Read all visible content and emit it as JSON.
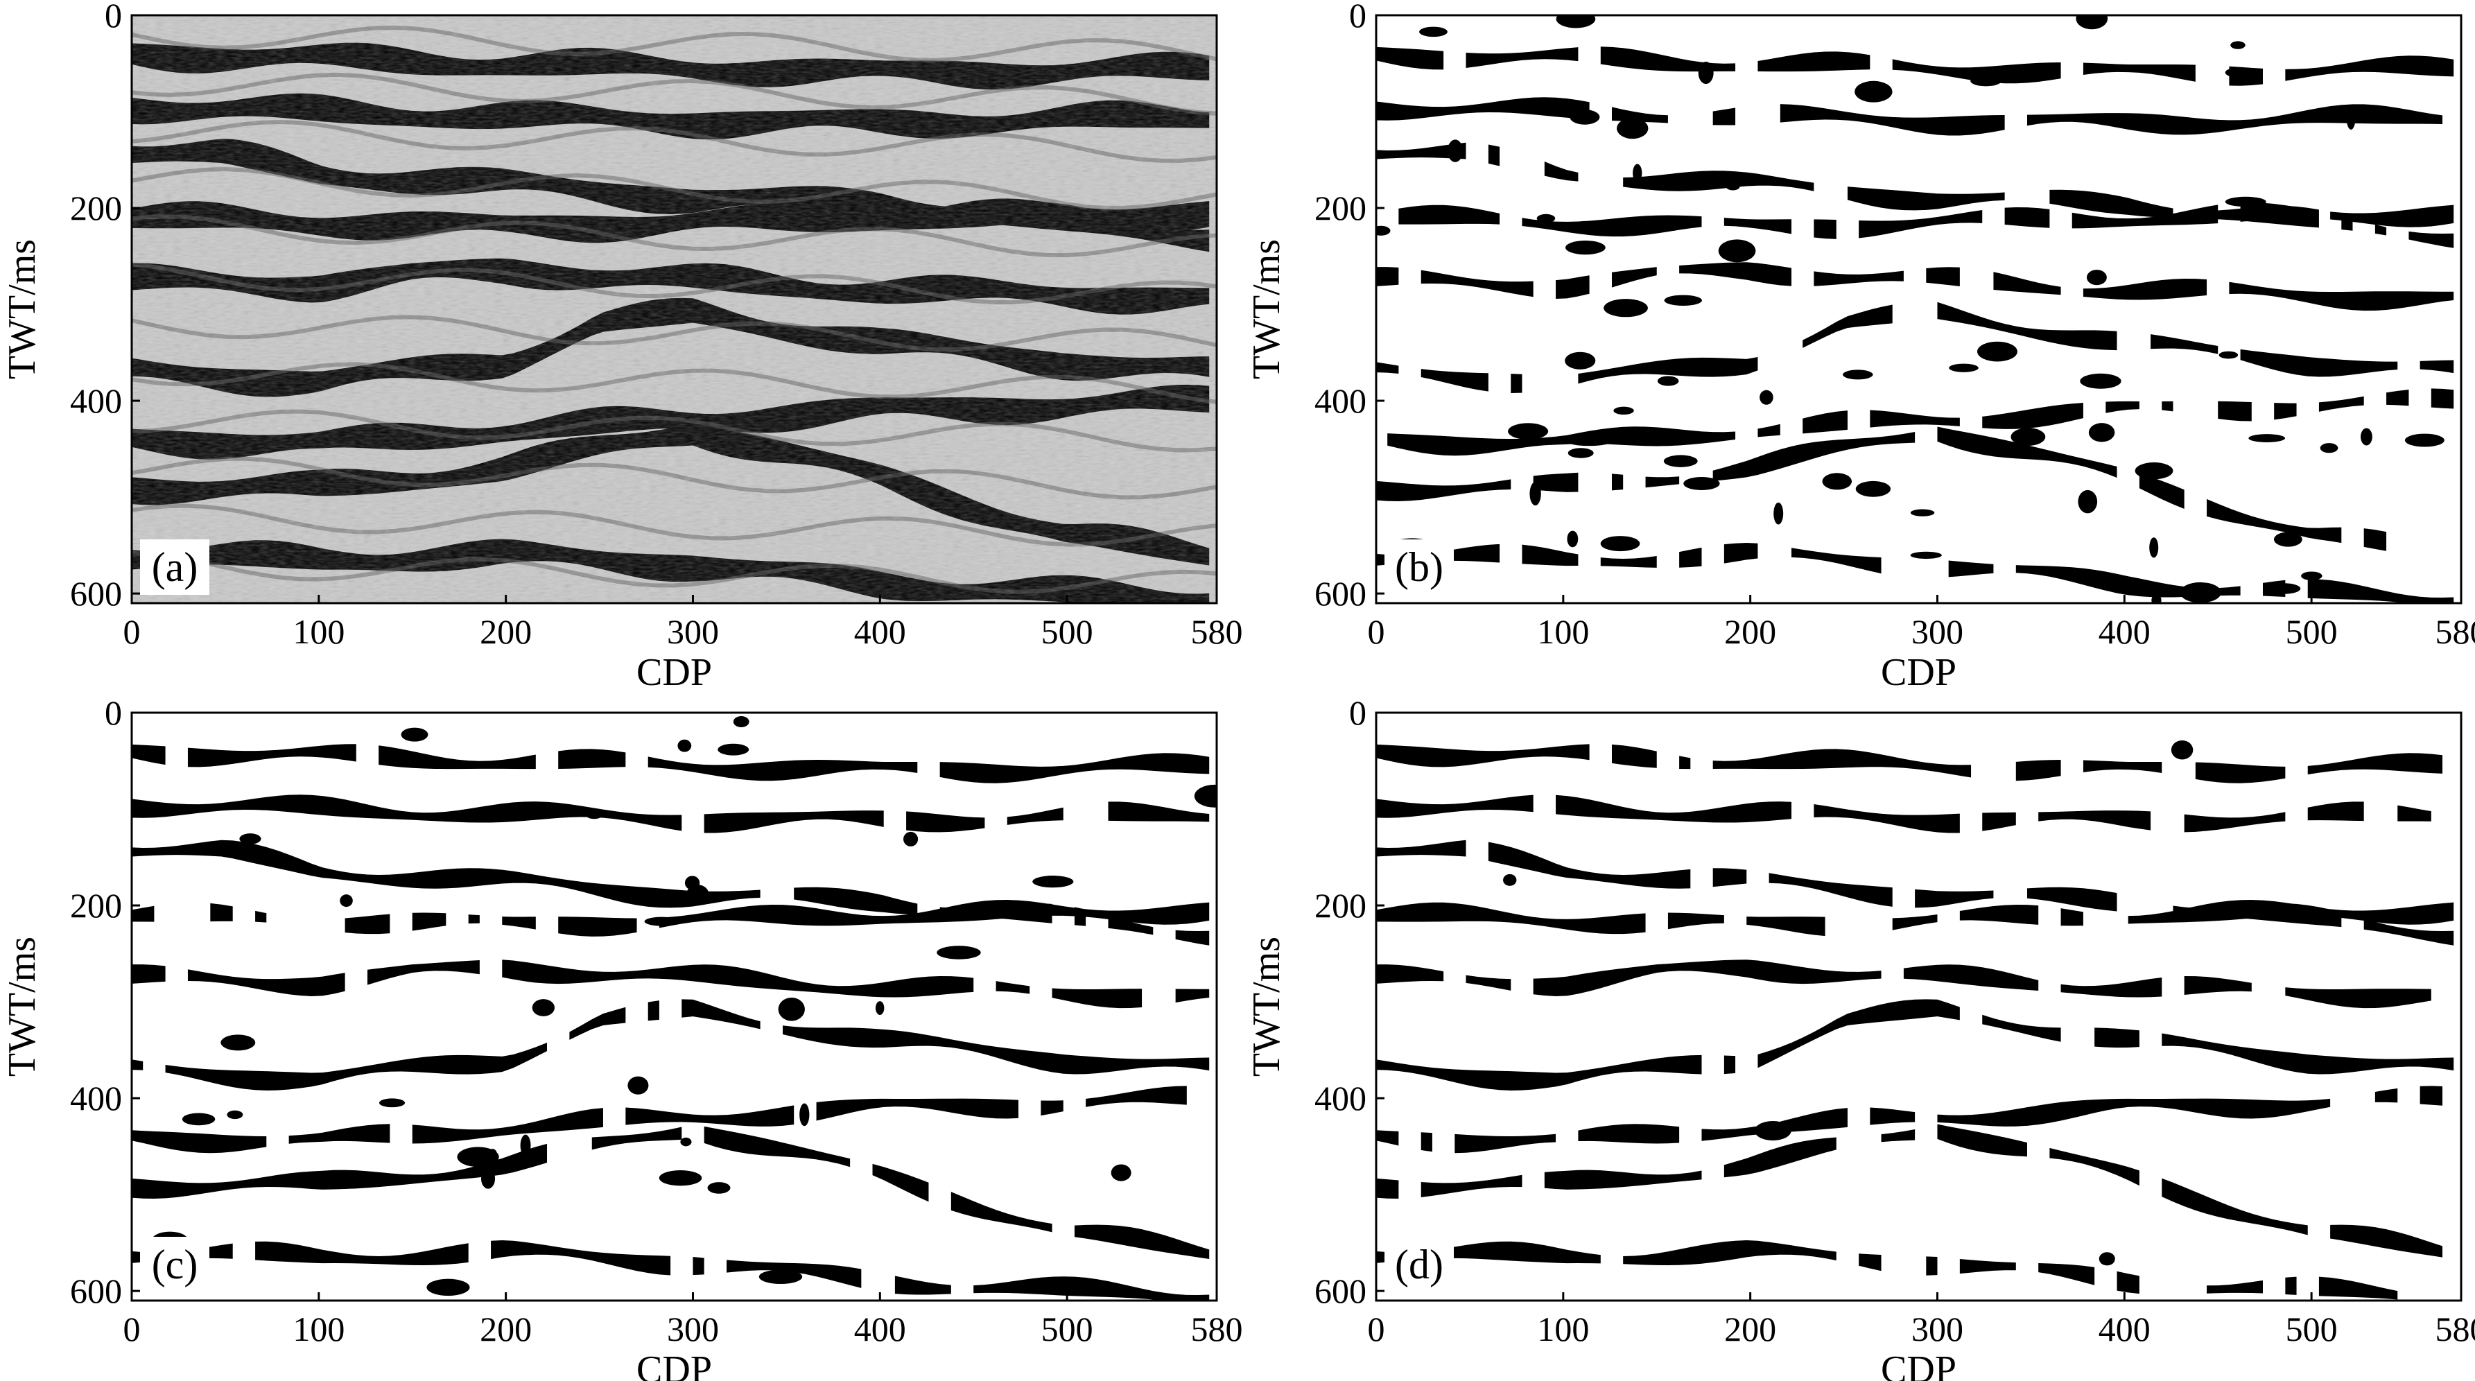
{
  "chart_data": [
    {
      "type": "heatmap",
      "panel_label": "(a)",
      "style": "grayscale seismic amplitude section",
      "xlabel": "CDP",
      "ylabel": "TWT/ms",
      "x_ticks": [
        0,
        100,
        200,
        300,
        400,
        500,
        580
      ],
      "y_ticks": [
        0,
        200,
        400,
        600
      ],
      "xlim": [
        0,
        580
      ],
      "ylim": [
        0,
        610
      ],
      "y_inverted": true
    },
    {
      "type": "heatmap",
      "panel_label": "(b)",
      "style": "binary black/white horizon map",
      "xlabel": "CDP",
      "ylabel": "TWT/ms",
      "x_ticks": [
        0,
        100,
        200,
        300,
        400,
        500,
        580
      ],
      "y_ticks": [
        0,
        200,
        400,
        600
      ],
      "xlim": [
        0,
        580
      ],
      "ylim": [
        0,
        610
      ],
      "y_inverted": true
    },
    {
      "type": "heatmap",
      "panel_label": "(c)",
      "style": "binary black/white horizon map",
      "xlabel": "CDP",
      "ylabel": "TWT/ms",
      "x_ticks": [
        0,
        100,
        200,
        300,
        400,
        500,
        580
      ],
      "y_ticks": [
        0,
        200,
        400,
        600
      ],
      "xlim": [
        0,
        580
      ],
      "ylim": [
        0,
        610
      ],
      "y_inverted": true
    },
    {
      "type": "heatmap",
      "panel_label": "(d)",
      "style": "binary black/white horizon map",
      "xlabel": "CDP",
      "ylabel": "TWT/ms",
      "x_ticks": [
        0,
        100,
        200,
        300,
        400,
        500,
        580
      ],
      "y_ticks": [
        0,
        200,
        400,
        600
      ],
      "xlim": [
        0,
        580
      ],
      "ylim": [
        0,
        610
      ],
      "y_inverted": true
    }
  ],
  "horizon_traces": [
    {
      "cdp": [
        0,
        100,
        200,
        300,
        400,
        500,
        580
      ],
      "twt": [
        40,
        45,
        50,
        55,
        60,
        58,
        55
      ]
    },
    {
      "cdp": [
        0,
        100,
        200,
        300,
        400,
        500,
        580
      ],
      "twt": [
        95,
        100,
        105,
        110,
        112,
        108,
        105
      ]
    },
    {
      "cdp": [
        0,
        50,
        100,
        200,
        300,
        400,
        500,
        580
      ],
      "twt": [
        140,
        145,
        165,
        175,
        190,
        195,
        215,
        230
      ]
    },
    {
      "cdp": [
        0,
        100,
        200,
        300,
        400,
        500,
        580
      ],
      "twt": [
        210,
        215,
        220,
        215,
        210,
        208,
        205
      ]
    },
    {
      "cdp": [
        0,
        100,
        150,
        200,
        300,
        400,
        500,
        580
      ],
      "twt": [
        275,
        280,
        270,
        265,
        275,
        285,
        290,
        295
      ]
    },
    {
      "cdp": [
        0,
        100,
        200,
        250,
        300,
        400,
        500,
        580
      ],
      "twt": [
        370,
        380,
        360,
        320,
        310,
        340,
        360,
        370
      ]
    },
    {
      "cdp": [
        0,
        100,
        200,
        300,
        400,
        500,
        580
      ],
      "twt": [
        440,
        445,
        430,
        420,
        410,
        405,
        400
      ]
    },
    {
      "cdp": [
        0,
        100,
        200,
        300,
        400,
        500,
        580
      ],
      "twt": [
        490,
        490,
        470,
        430,
        480,
        540,
        560
      ]
    },
    {
      "cdp": [
        0,
        100,
        200,
        300,
        400,
        500,
        580
      ],
      "twt": [
        560,
        565,
        560,
        570,
        590,
        600,
        605
      ]
    }
  ]
}
